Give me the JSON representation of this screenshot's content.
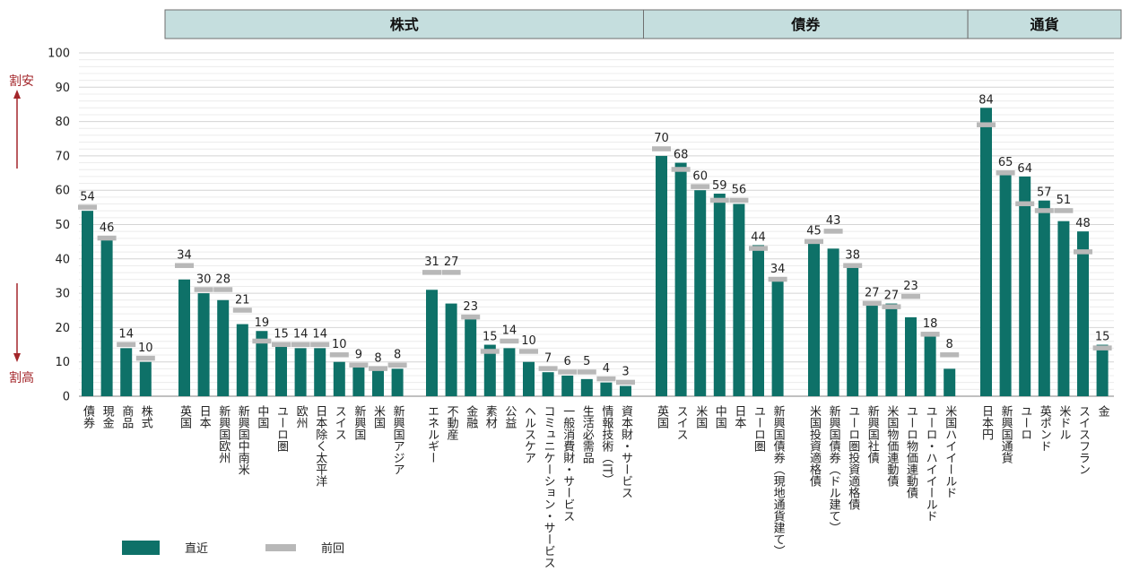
{
  "chart_data": {
    "type": "bar",
    "ylim": [
      0,
      100
    ],
    "yticks": [
      0,
      10,
      20,
      30,
      40,
      50,
      60,
      70,
      80,
      90,
      100
    ],
    "side_labels": {
      "top": "割安",
      "bottom": "割高"
    },
    "legend": {
      "current": "直近",
      "previous": "前回"
    },
    "colors": {
      "current": "#0e7168",
      "previous": "#b8b8b8",
      "header_fill": "#c5dede",
      "axis_text": "#222222",
      "side_text": "#a3262a"
    },
    "headers": [
      {
        "label": "株式",
        "groups": [
          1,
          2,
          3
        ]
      },
      {
        "label": "債券",
        "groups": [
          4,
          5
        ]
      },
      {
        "label": "通貨",
        "groups": [
          6
        ]
      }
    ],
    "groups": [
      {
        "bars": [
          {
            "label": "債券",
            "current": 54,
            "previous": 55
          },
          {
            "label": "現金",
            "current": 46,
            "previous": 46
          },
          {
            "label": "商品",
            "current": 14,
            "previous": 15
          },
          {
            "label": "株式",
            "current": 10,
            "previous": 11
          }
        ]
      },
      {
        "bars": [
          {
            "label": "英国",
            "current": 34,
            "previous": 38
          },
          {
            "label": "日本",
            "current": 30,
            "previous": 31
          },
          {
            "label": "新興国欧州",
            "current": 28,
            "previous": 31
          },
          {
            "label": "新興国中南米",
            "current": 21,
            "previous": 25
          },
          {
            "label": "中国",
            "current": 19,
            "previous": 16
          },
          {
            "label": "ユーロ圏",
            "current": 15,
            "previous": 15
          },
          {
            "label": "欧州",
            "current": 14,
            "previous": 15
          },
          {
            "label": "日本除く太平洋",
            "current": 14,
            "previous": 15
          },
          {
            "label": "スイス",
            "current": 10,
            "previous": 12
          },
          {
            "label": "新興国",
            "current": 9,
            "previous": 9
          },
          {
            "label": "米国",
            "current": 8,
            "previous": 8
          },
          {
            "label": "新興国アジア",
            "current": 8,
            "previous": 9
          }
        ]
      },
      {
        "bars": [
          {
            "label": "エネルギー",
            "current": 31,
            "previous": 36
          },
          {
            "label": "不動産",
            "current": 27,
            "previous": 36
          },
          {
            "label": "金融",
            "current": 23,
            "previous": 23
          },
          {
            "label": "素材",
            "current": 15,
            "previous": 13
          },
          {
            "label": "公益",
            "current": 14,
            "previous": 16
          },
          {
            "label": "ヘルスケア",
            "current": 10,
            "previous": 13
          },
          {
            "label": "コミュニケーション・サービス",
            "current": 7,
            "previous": 8
          },
          {
            "label": "一般消費財・サービス",
            "current": 6,
            "previous": 7
          },
          {
            "label": "生活必需品",
            "current": 5,
            "previous": 7
          },
          {
            "label": "情報技術（IT）",
            "current": 4,
            "previous": 5
          },
          {
            "label": "資本財・サービス",
            "current": 3,
            "previous": 4
          }
        ]
      },
      {
        "bars": [
          {
            "label": "英国",
            "current": 70,
            "previous": 72
          },
          {
            "label": "スイス",
            "current": 68,
            "previous": 66
          },
          {
            "label": "米国",
            "current": 60,
            "previous": 61
          },
          {
            "label": "中国",
            "current": 59,
            "previous": 57
          },
          {
            "label": "日本",
            "current": 56,
            "previous": 57
          },
          {
            "label": "ユーロ圏",
            "current": 44,
            "previous": 43
          },
          {
            "label": "新興国債券（現地通貨建て）",
            "current": 34,
            "previous": 34
          }
        ]
      },
      {
        "bars": [
          {
            "label": "米国投資適格債",
            "current": 45,
            "previous": 45
          },
          {
            "label": "新興国債券（ドル建て）",
            "current": 43,
            "previous": 48
          },
          {
            "label": "ユーロ圏投資適格債",
            "current": 38,
            "previous": 38
          },
          {
            "label": "新興国社債",
            "current": 27,
            "previous": 27
          },
          {
            "label": "米国物価連動債",
            "current": 27,
            "previous": 26
          },
          {
            "label": "ユーロ物価連動債",
            "current": 23,
            "previous": 29
          },
          {
            "label": "ユーロ・ハイイールド",
            "current": 18,
            "previous": 18
          },
          {
            "label": "米国ハイイールド",
            "current": 8,
            "previous": 12
          }
        ]
      },
      {
        "bars": [
          {
            "label": "日本円",
            "current": 84,
            "previous": 79
          },
          {
            "label": "新興国通貨",
            "current": 65,
            "previous": 65
          },
          {
            "label": "ユーロ",
            "current": 64,
            "previous": 56
          },
          {
            "label": "英ポンド",
            "current": 57,
            "previous": 54
          },
          {
            "label": "米ドル",
            "current": 51,
            "previous": 54
          },
          {
            "label": "スイスフラン",
            "current": 48,
            "previous": 42
          },
          {
            "label": "金",
            "current": 15,
            "previous": 14
          }
        ]
      }
    ]
  }
}
